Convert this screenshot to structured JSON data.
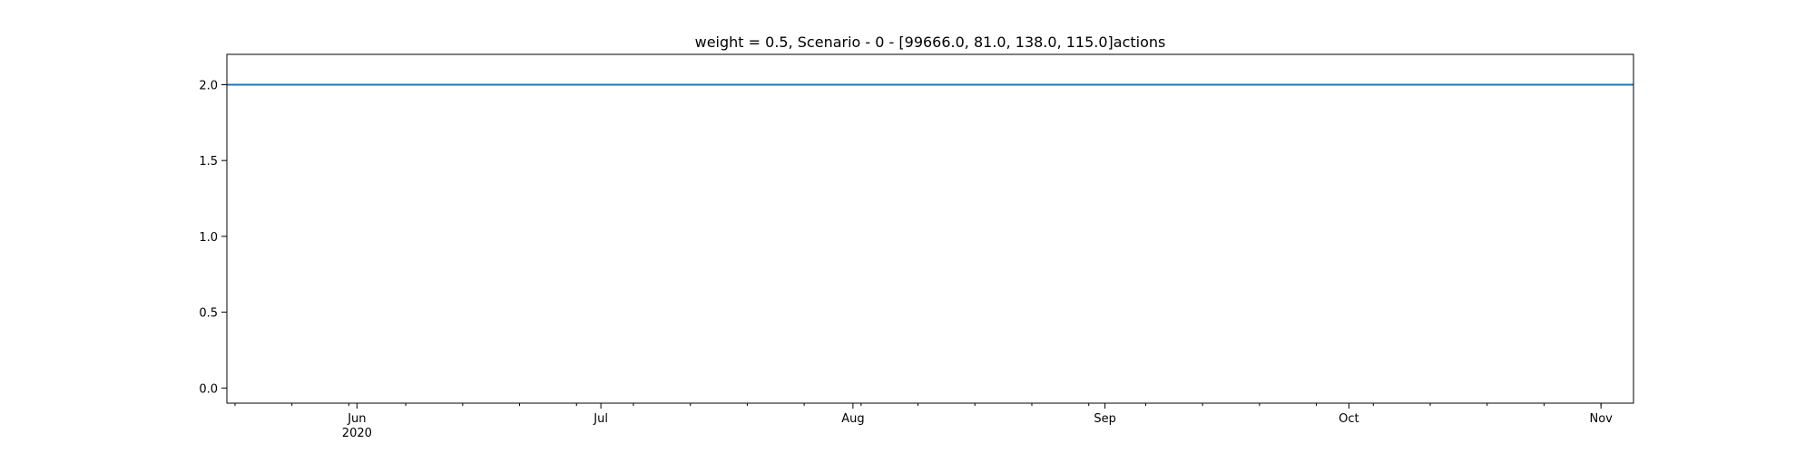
{
  "chart_data": {
    "type": "line",
    "title": "weight = 0.5, Scenario - 0 - [99666.0, 81.0, 138.0, 115.0]actions",
    "xlabel": "",
    "ylabel": "",
    "grid": false,
    "xlim": [
      "2020-05-16",
      "2020-11-05"
    ],
    "ylim": [
      -0.1,
      2.2
    ],
    "x_major_ticks": [
      {
        "date": "2020-06-01",
        "label": "Jun",
        "sublabel": "2020"
      },
      {
        "date": "2020-07-01",
        "label": "Jul"
      },
      {
        "date": "2020-08-01",
        "label": "Aug"
      },
      {
        "date": "2020-09-01",
        "label": "Sep"
      },
      {
        "date": "2020-10-01",
        "label": "Oct"
      },
      {
        "date": "2020-11-01",
        "label": "Nov"
      }
    ],
    "x_minor_ticks": [
      "2020-05-17",
      "2020-05-24",
      "2020-05-31",
      "2020-06-07",
      "2020-06-14",
      "2020-06-21",
      "2020-06-28",
      "2020-07-05",
      "2020-07-12",
      "2020-07-19",
      "2020-07-26",
      "2020-08-02",
      "2020-08-09",
      "2020-08-16",
      "2020-08-23",
      "2020-08-30",
      "2020-09-06",
      "2020-09-13",
      "2020-09-20",
      "2020-09-27",
      "2020-10-04",
      "2020-10-11",
      "2020-10-18",
      "2020-10-25",
      "2020-11-01"
    ],
    "y_ticks": [
      {
        "value": 0.0,
        "label": "0.0"
      },
      {
        "value": 0.5,
        "label": "0.5"
      },
      {
        "value": 1.0,
        "label": "1.0"
      },
      {
        "value": 1.5,
        "label": "1.5"
      },
      {
        "value": 2.0,
        "label": "2.0"
      }
    ],
    "series": [
      {
        "color": "#1f77b4",
        "x": [
          "2020-05-16",
          "2020-11-05"
        ],
        "y": [
          2.0,
          2.0
        ]
      }
    ]
  }
}
